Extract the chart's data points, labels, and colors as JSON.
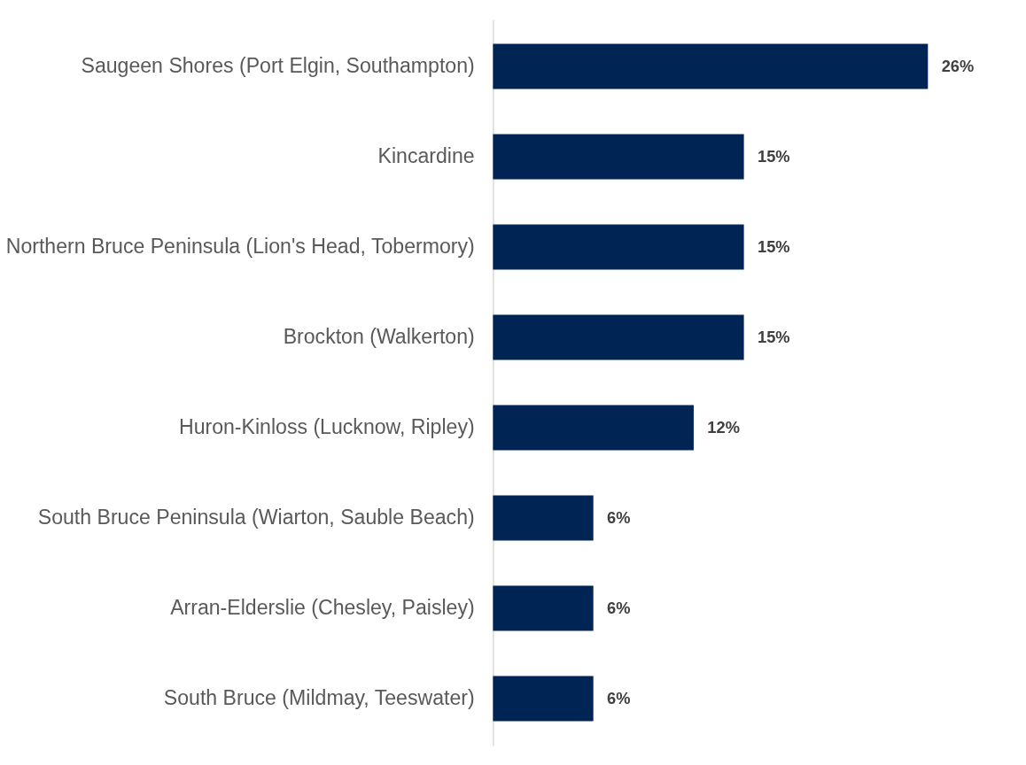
{
  "chart_data": {
    "type": "bar",
    "orientation": "horizontal",
    "categories": [
      "Saugeen Shores (Port Elgin, Southampton)",
      "Kincardine",
      "Northern Bruce Peninsula (Lion's Head, Tobermory)",
      "Brockton (Walkerton)",
      "Huron-Kinloss (Lucknow, Ripley)",
      "South Bruce Peninsula (Wiarton, Sauble Beach)",
      "Arran-Elderslie (Chesley, Paisley)",
      "South Bruce (Mildmay, Teeswater)"
    ],
    "values": [
      26,
      15,
      15,
      15,
      12,
      6,
      6,
      6
    ],
    "value_labels": [
      "26%",
      "15%",
      "15%",
      "15%",
      "12%",
      "6%",
      "6%",
      "6%"
    ],
    "color": "#002554",
    "grid": false
  }
}
